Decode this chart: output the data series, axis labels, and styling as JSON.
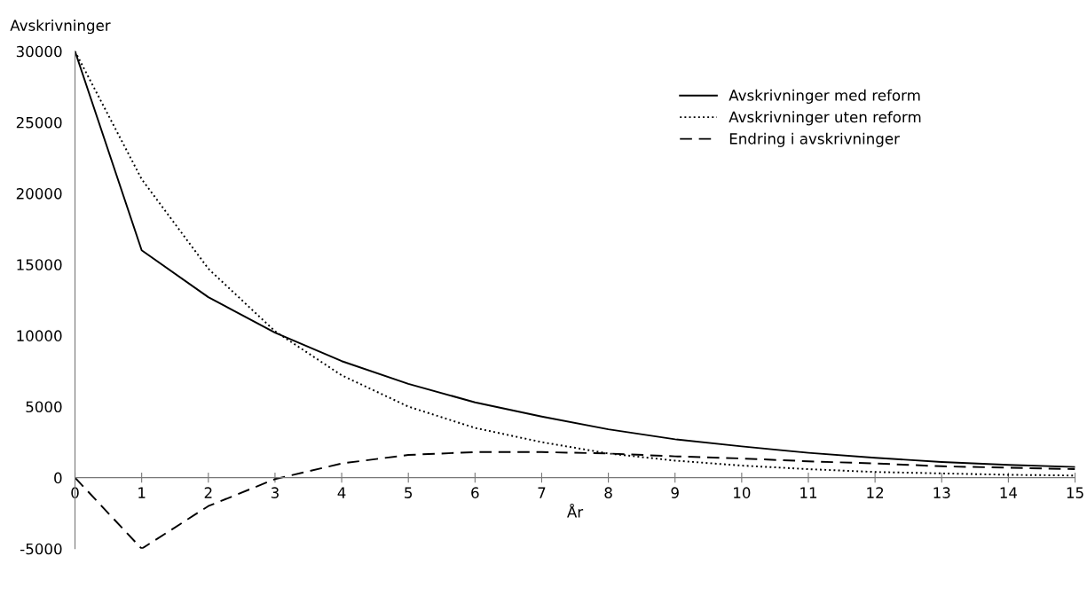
{
  "chart_data": {
    "type": "line",
    "ylabel": "Avskrivninger",
    "xlabel": "År",
    "x": [
      0,
      1,
      2,
      3,
      4,
      5,
      6,
      7,
      8,
      9,
      10,
      11,
      12,
      13,
      14,
      15
    ],
    "series": [
      {
        "name": "Avskrivninger med reform",
        "color": "#000000",
        "line_style": "solid",
        "values": [
          30000,
          16000,
          12700,
          10200,
          8200,
          6600,
          5300,
          4300,
          3400,
          2700,
          2200,
          1750,
          1400,
          1100,
          900,
          750
        ]
      },
      {
        "name": "Avskrivninger uten reform",
        "color": "#000000",
        "line_style": "dotted",
        "values": [
          30000,
          21000,
          14700,
          10300,
          7200,
          5000,
          3500,
          2500,
          1700,
          1200,
          850,
          600,
          400,
          300,
          200,
          150
        ]
      },
      {
        "name": "Endring i avskrivninger",
        "color": "#000000",
        "line_style": "dashed",
        "values": [
          0,
          -5000,
          -2000,
          -100,
          1000,
          1600,
          1800,
          1800,
          1700,
          1500,
          1350,
          1150,
          1000,
          800,
          700,
          600
        ]
      }
    ],
    "xlim": [
      0,
      15
    ],
    "xticks": [
      0,
      1,
      2,
      3,
      4,
      5,
      6,
      7,
      8,
      9,
      10,
      11,
      12,
      13,
      14,
      15
    ],
    "ylim": [
      -5000,
      30000
    ],
    "yticks": [
      -5000,
      0,
      5000,
      10000,
      15000,
      20000,
      25000,
      30000
    ],
    "grid": false,
    "legend": "top right",
    "marker": "none"
  }
}
